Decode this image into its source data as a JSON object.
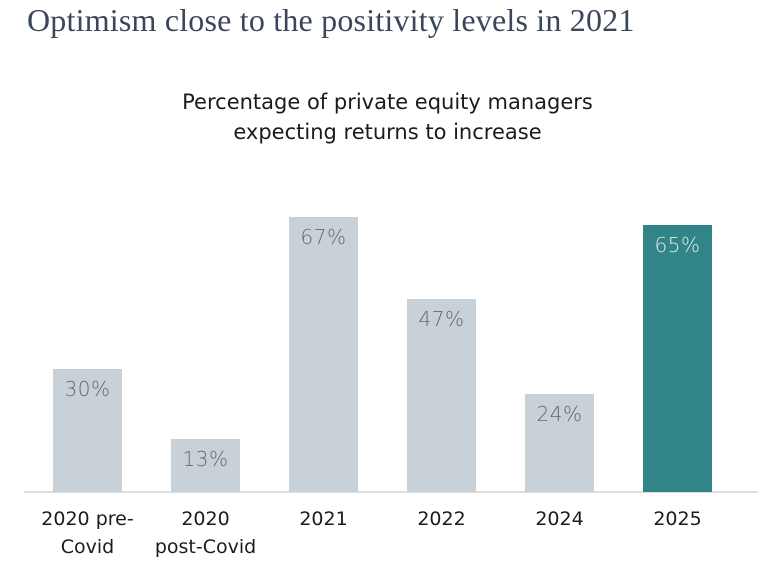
{
  "title": {
    "text": "Optimism close to the positivity levels in 2021",
    "color": "#3a4659"
  },
  "chart_data": {
    "type": "bar",
    "title": "Percentage of private equity managers\nexpecting returns to increase",
    "categories": [
      "2020 pre-\nCovid",
      "2020\npost-Covid",
      "2021",
      "2022",
      "2024",
      "2025"
    ],
    "values": [
      30,
      13,
      67,
      47,
      24,
      65
    ],
    "value_labels": [
      "30%",
      "13%",
      "67%",
      "47%",
      "24%",
      "65%"
    ],
    "highlighted_index": 5,
    "ylim": [
      0,
      70
    ],
    "xlabel": "",
    "ylabel": "",
    "grid": false,
    "legend": false,
    "colors": {
      "bar_default": "#c7d1d7",
      "bar_highlight": "#318487",
      "value_label_default": "#5e6a73",
      "value_label_highlight": "#dfecec",
      "axis_line": "#dedede"
    }
  }
}
